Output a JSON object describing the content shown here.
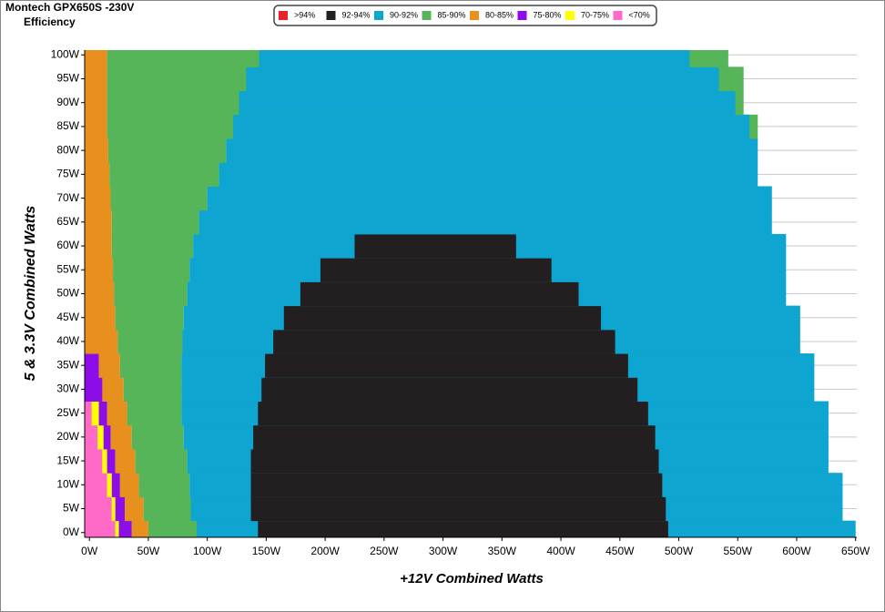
{
  "chart_data": {
    "type": "efficiency-map",
    "title": "Montech GPX650S -230V",
    "subtitle": "Efficiency",
    "x_label": "+12V Combined Watts",
    "y_label": "5 & 3.3V Combined Watts",
    "y": [
      0,
      5,
      10,
      15,
      20,
      25,
      30,
      35,
      40,
      45,
      50,
      55,
      60,
      65,
      70,
      75,
      80,
      85,
      90,
      95,
      100
    ],
    "series": [
      {
        "name": ">94%",
        "color": "#e8212b",
        "x_end": [
          null,
          null,
          null,
          null,
          null,
          null,
          null,
          null,
          null,
          null,
          null,
          null,
          null,
          null,
          null,
          null,
          null,
          null,
          null,
          null,
          null
        ]
      },
      {
        "name": "92-94%",
        "color": "#231f20",
        "x_start": [
          143,
          137,
          137,
          137,
          139,
          143,
          146,
          149,
          156,
          165,
          179,
          196,
          225,
          null,
          null,
          null,
          null,
          null,
          null,
          null,
          null
        ],
        "x_end": [
          491,
          489,
          486,
          483,
          480,
          474,
          465,
          457,
          446,
          434,
          415,
          392,
          362,
          null,
          null,
          null,
          null,
          null,
          null,
          null,
          null
        ]
      },
      {
        "name": "90-92%",
        "color": "#0ea5d1",
        "x_start": [
          91,
          86,
          85,
          83,
          80,
          78,
          78,
          78,
          79,
          80,
          83,
          85,
          88,
          93,
          100,
          110,
          116,
          122,
          127,
          133,
          144
        ],
        "x_end": [
          650,
          639,
          639,
          627,
          627,
          627,
          615,
          615,
          603,
          603,
          591,
          591,
          591,
          579,
          579,
          567,
          567,
          560,
          548,
          534,
          509
        ]
      },
      {
        "name": "85-90%",
        "color": "#55b558",
        "x_end": [
          91,
          86,
          85,
          83,
          80,
          78,
          78,
          78,
          79,
          80,
          83,
          85,
          88,
          93,
          100,
          110,
          116,
          567,
          555,
          555,
          542
        ]
      },
      {
        "name": "80-85%",
        "color": "#e8901e",
        "x_end": [
          50,
          46,
          42,
          39,
          36,
          32,
          29,
          26,
          24,
          22,
          21,
          20,
          19,
          19,
          18,
          17,
          16,
          15,
          15,
          15,
          15
        ]
      },
      {
        "name": "75-80%",
        "color": "#8d0de8",
        "x_end": [
          36,
          30,
          26,
          22,
          18,
          15,
          11,
          8,
          null,
          null,
          null,
          null,
          null,
          null,
          null,
          null,
          null,
          null,
          null,
          null,
          null
        ]
      },
      {
        "name": "70-75%",
        "color": "#ffff00",
        "x_end": [
          25,
          22,
          19,
          15,
          12,
          8,
          null,
          null,
          null,
          null,
          null,
          null,
          null,
          null,
          null,
          null,
          null,
          null,
          null,
          null,
          null
        ]
      },
      {
        "name": "<70%",
        "color": "#ff69c8",
        "x_end": [
          22,
          19,
          15,
          11,
          7,
          2,
          null,
          null,
          null,
          null,
          null,
          null,
          null,
          null,
          null,
          null,
          null,
          null,
          null,
          null,
          null
        ]
      }
    ],
    "xlim": [
      -4,
      651
    ],
    "ylim": [
      -1,
      101
    ],
    "xticks": [
      {
        "value": 0,
        "label": "0W"
      },
      {
        "value": 50,
        "label": "50W"
      },
      {
        "value": 100,
        "label": "100W"
      },
      {
        "value": 150,
        "label": "150W"
      },
      {
        "value": 200,
        "label": "200W"
      },
      {
        "value": 250,
        "label": "250W"
      },
      {
        "value": 300,
        "label": "300W"
      },
      {
        "value": 350,
        "label": "350W"
      },
      {
        "value": 400,
        "label": "400W"
      },
      {
        "value": 450,
        "label": "450W"
      },
      {
        "value": 500,
        "label": "500W"
      },
      {
        "value": 550,
        "label": "550W"
      },
      {
        "value": 600,
        "label": "600W"
      },
      {
        "value": 650,
        "label": "650W"
      }
    ],
    "yticks": [
      {
        "value": 0,
        "label": "0W"
      },
      {
        "value": 5,
        "label": "5W"
      },
      {
        "value": 10,
        "label": "10W"
      },
      {
        "value": 15,
        "label": "15W"
      },
      {
        "value": 20,
        "label": "20W"
      },
      {
        "value": 25,
        "label": "25W"
      },
      {
        "value": 30,
        "label": "30W"
      },
      {
        "value": 35,
        "label": "35W"
      },
      {
        "value": 40,
        "label": "40W"
      },
      {
        "value": 45,
        "label": "45W"
      },
      {
        "value": 50,
        "label": "50W"
      },
      {
        "value": 55,
        "label": "55W"
      },
      {
        "value": 60,
        "label": "60W"
      },
      {
        "value": 65,
        "label": "65W"
      },
      {
        "value": 70,
        "label": "70W"
      },
      {
        "value": 75,
        "label": "75W"
      },
      {
        "value": 80,
        "label": "80W"
      },
      {
        "value": 85,
        "label": "85W"
      },
      {
        "value": 90,
        "label": "90W"
      },
      {
        "value": 95,
        "label": "95W"
      },
      {
        "value": 100,
        "label": "100W"
      }
    ],
    "grid": true,
    "legend": "top"
  }
}
